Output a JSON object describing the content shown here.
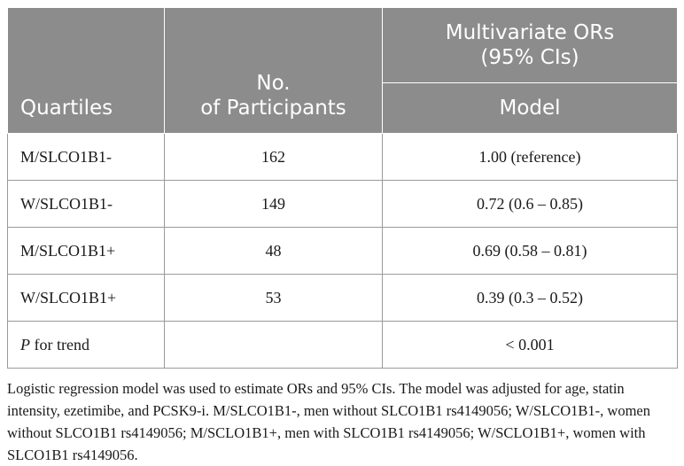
{
  "table": {
    "headers": {
      "quartiles": "Quartiles",
      "participants_line1": "No.",
      "participants_line2": "of Participants",
      "multivariate_line1": "Multivariate ORs",
      "multivariate_line2": "(95% CIs)",
      "model": "Model"
    },
    "rows": [
      {
        "quartile": "M/SLCO1B1-",
        "participants": "162",
        "or": "1.00 (reference)"
      },
      {
        "quartile": "W/SLCO1B1-",
        "participants": "149",
        "or": "0.72 (0.6 – 0.85)"
      },
      {
        "quartile": "M/SLCO1B1+",
        "participants": "48",
        "or": "0.69 (0.58 – 0.81)"
      },
      {
        "quartile": "W/SLCO1B1+",
        "participants": "53",
        "or": "0.39 (0.3 – 0.52)"
      }
    ],
    "trend": {
      "label_p": "P",
      "label_rest": " for trend",
      "participants": "",
      "or": "< 0.001"
    }
  },
  "footnote": "Logistic regression model was used to estimate ORs and 95% CIs. The model was adjusted for age, statin intensity, ezetimibe, and PCSK9-i. M/SLCO1B1-, men without SLCO1B1 rs4149056; W/SLCO1B1-, women without SLCO1B1 rs4149056; M/SCLO1B1+, men with SLCO1B1 rs4149056; W/SCLO1B1+, women with SLCO1B1 rs4149056."
}
